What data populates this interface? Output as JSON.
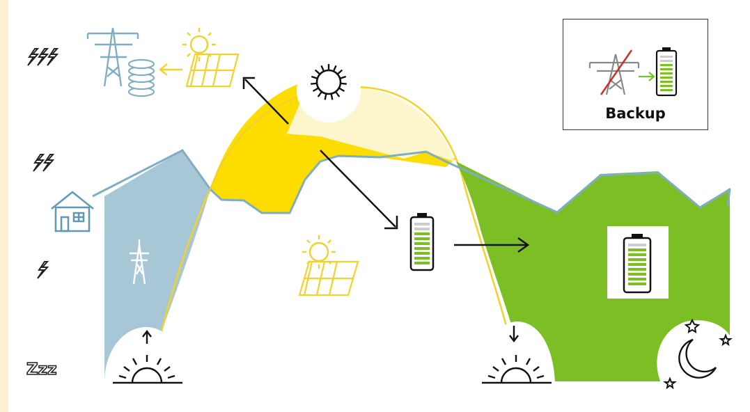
{
  "legend": {
    "label": "Backup"
  },
  "levels": [
    {
      "name": "high",
      "icon": "triple-lightning-icon"
    },
    {
      "name": "medium",
      "icon": "double-lightning-icon"
    },
    {
      "name": "low",
      "icon": "single-lightning-icon"
    },
    {
      "name": "sleep",
      "icon": "zzz-icon",
      "text": "Zzz"
    }
  ],
  "colors": {
    "grid": "#a8c7d6",
    "grid_line": "#7faec3",
    "solar_direct": "#fddc00",
    "solar_excess": "#fdf6cc",
    "battery": "#7bbf24",
    "solar_icon": "#f2d22a",
    "background": "#fdf0d3",
    "legend_strike": "#d42a2a"
  },
  "icons": [
    "house-icon",
    "grid-tower-icon",
    "sun-icon",
    "solar-panel-icon",
    "battery-icon",
    "coin-stack-icon",
    "sunrise-icon",
    "sunset-icon",
    "moon-icon",
    "star-icon"
  ]
}
